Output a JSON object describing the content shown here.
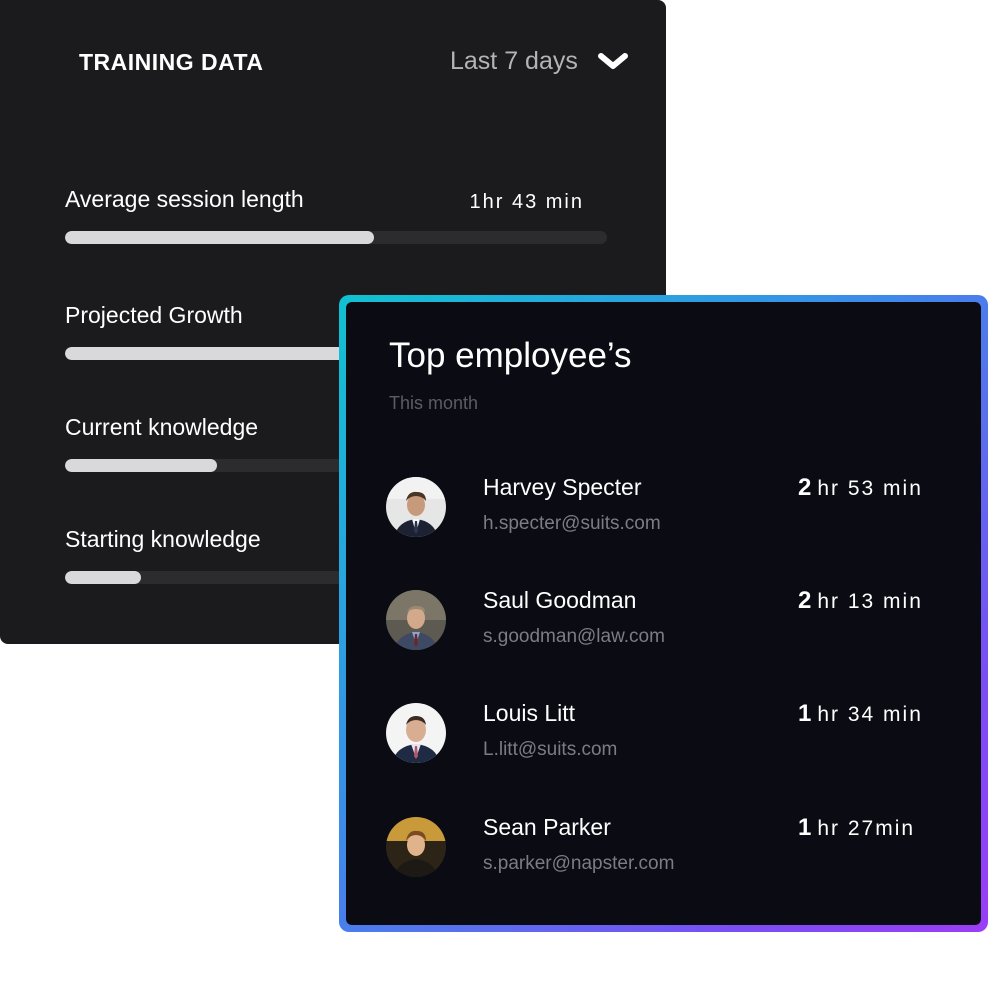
{
  "training": {
    "title": "TRAINING DATA",
    "range": "Last 7 days",
    "metrics": [
      {
        "label": "Average session length",
        "value": "1hr 43 min",
        "progress": 0.57
      },
      {
        "label": "Projected Growth",
        "value": "",
        "progress": 0.85
      },
      {
        "label": "Current knowledge",
        "value": "",
        "progress": 0.28
      },
      {
        "label": "Starting knowledge",
        "value": "",
        "progress": 0.14
      }
    ]
  },
  "top_employees": {
    "title": "Top employee’s",
    "subtitle": "This month",
    "employees": [
      {
        "name": "Harvey Specter",
        "email": "h.specter@suits.com",
        "time_num": "2",
        "time_rest": "hr 53 min"
      },
      {
        "name": "Saul Goodman",
        "email": "s.goodman@law.com",
        "time_num": "2",
        "time_rest": "hr 13 min"
      },
      {
        "name": "Louis Litt",
        "email": "L.litt@suits.com",
        "time_num": "1",
        "time_rest": "hr 34 min"
      },
      {
        "name": "Sean Parker",
        "email": "s.parker@napster.com",
        "time_num": "1",
        "time_rest": "hr 27min"
      }
    ]
  },
  "icons": {
    "range_chevron": "chevron-down-icon",
    "avatars": "user-avatar"
  },
  "colors": {
    "card_dark": "#1b1b1d",
    "card_navy": "#0b0b14",
    "gradient_start": "#10c2d1",
    "gradient_end": "#9b3df7",
    "progress_fill": "#d9d9dc"
  }
}
